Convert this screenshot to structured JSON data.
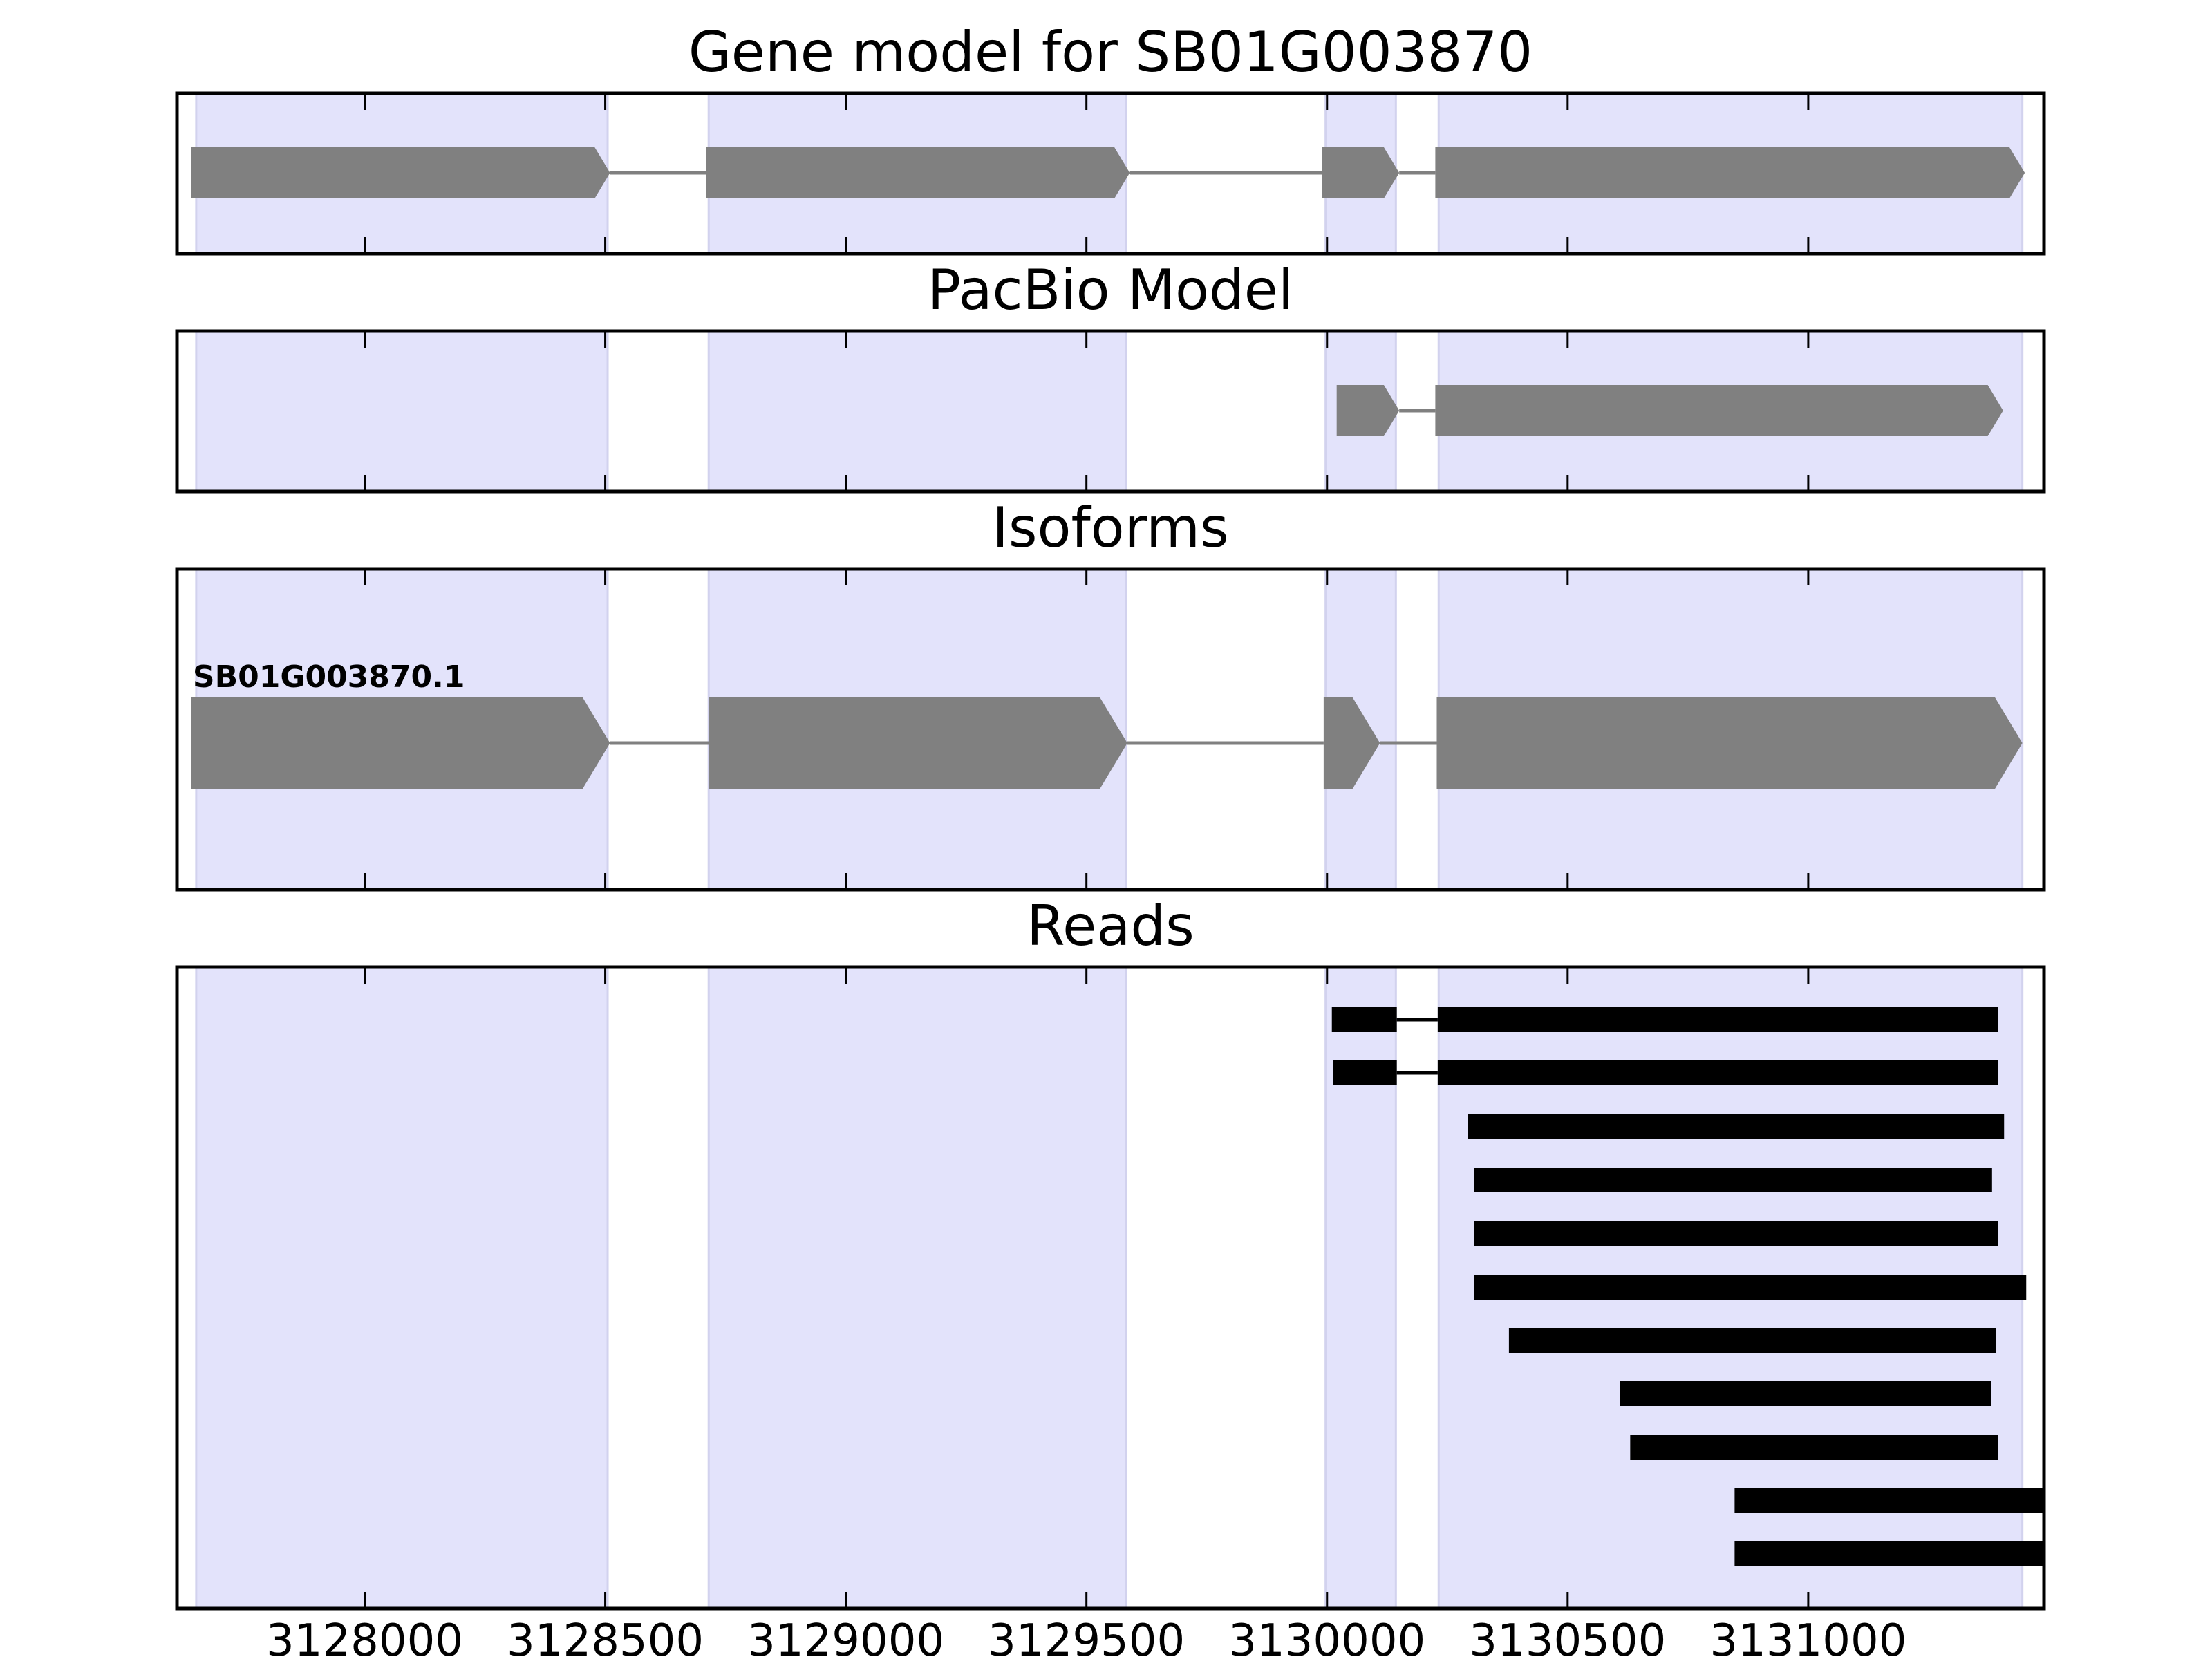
{
  "colors": {
    "exon_band": "#e3e3fb",
    "exon_band_edge": "#d2d2ee",
    "feature_fill": "#808080",
    "intron_line": "#808080",
    "read_fill": "#000000",
    "axes": "#000000"
  },
  "chart_data": {
    "type": "gene-track",
    "xlim": [
      3127610,
      3131490
    ],
    "x_ticks": [
      3128000,
      3128500,
      3129000,
      3129500,
      3130000,
      3130500,
      3131000
    ],
    "x_tick_labels": [
      "3128000",
      "3128500",
      "3129000",
      "3129500",
      "3130000",
      "3130500",
      "3131000"
    ],
    "exon_regions": [
      [
        3127650,
        3128505
      ],
      [
        3128715,
        3129583
      ],
      [
        3129997,
        3130143
      ],
      [
        3130232,
        3131445
      ]
    ],
    "panels": [
      {
        "title": "Gene model for SB01G003870",
        "features": [
          {
            "label": "",
            "exons": [
              [
                3127640,
                3128510
              ],
              [
                3128710,
                3129590
              ],
              [
                3129990,
                3130150
              ],
              [
                3130225,
                3131450
              ]
            ],
            "strand": "+"
          }
        ]
      },
      {
        "title": "PacBio Model",
        "features": [
          {
            "label": "",
            "exons": [
              [
                3130020,
                3130150
              ],
              [
                3130225,
                3131405
              ]
            ],
            "strand": "+"
          }
        ]
      },
      {
        "title": "Isoforms",
        "features": [
          {
            "label": "SB01G003870.1",
            "exons": [
              [
                3127640,
                3128510
              ],
              [
                3128715,
                3129585
              ],
              [
                3129993,
                3130110
              ],
              [
                3130228,
                3131445
              ]
            ],
            "strand": "+"
          }
        ]
      },
      {
        "title": "Reads",
        "reads": [
          [
            [
              3130010,
              3130145
            ],
            [
              3130230,
              3131395
            ]
          ],
          [
            [
              3130013,
              3130145
            ],
            [
              3130230,
              3131395
            ]
          ],
          [
            [
              3130293,
              3131407
            ]
          ],
          [
            [
              3130305,
              3131382
            ]
          ],
          [
            [
              3130305,
              3131395
            ]
          ],
          [
            [
              3130305,
              3131453
            ]
          ],
          [
            [
              3130378,
              3131390
            ]
          ],
          [
            [
              3130608,
              3131380
            ]
          ],
          [
            [
              3130630,
              3131395
            ]
          ],
          [
            [
              3130847,
              3131490
            ]
          ],
          [
            [
              3130847,
              3131490
            ]
          ]
        ]
      }
    ]
  }
}
